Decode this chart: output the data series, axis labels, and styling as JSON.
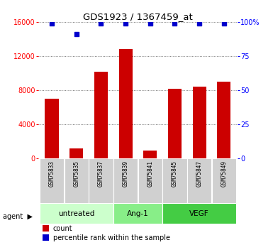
{
  "title": "GDS1923 / 1367459_at",
  "samples": [
    "GSM75833",
    "GSM75835",
    "GSM75837",
    "GSM75839",
    "GSM75841",
    "GSM75845",
    "GSM75847",
    "GSM75849"
  ],
  "counts": [
    7000,
    1200,
    10200,
    12800,
    900,
    8200,
    8400,
    9000
  ],
  "percentiles": [
    99,
    91,
    99,
    99,
    99,
    99,
    99,
    99
  ],
  "groups": [
    {
      "label": "untreated",
      "indices": [
        0,
        1,
        2
      ],
      "color": "#ccffcc"
    },
    {
      "label": "Ang-1",
      "indices": [
        3,
        4
      ],
      "color": "#88ee88"
    },
    {
      "label": "VEGF",
      "indices": [
        5,
        6,
        7
      ],
      "color": "#44cc44"
    }
  ],
  "bar_color": "#cc0000",
  "dot_color": "#0000cc",
  "ylim_left": [
    0,
    16000
  ],
  "ylim_right": [
    0,
    100
  ],
  "yticks_left": [
    0,
    4000,
    8000,
    12000,
    16000
  ],
  "yticks_right": [
    0,
    25,
    50,
    75,
    100
  ],
  "yticklabels_right": [
    "0",
    "25",
    "50",
    "75",
    "100%"
  ],
  "legend_count_label": "count",
  "legend_pct_label": "percentile rank within the sample",
  "agent_label": "agent",
  "sample_box_color": "#d0d0d0",
  "bar_color_hex": "#cc0000",
  "dot_color_hex": "#0000cc"
}
